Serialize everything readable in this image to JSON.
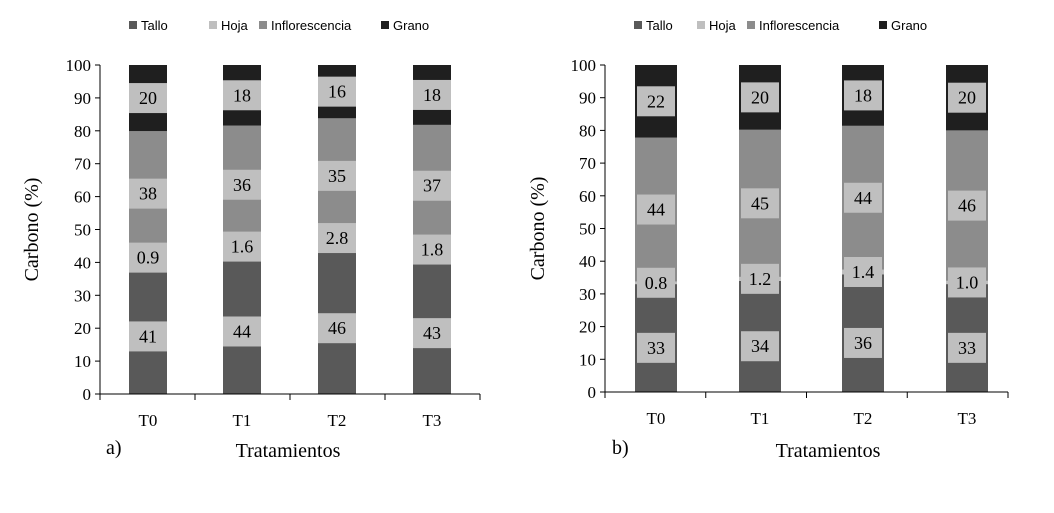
{
  "colors": {
    "Tallo": "#595959",
    "Hoja": "#bfbfbf",
    "Inflorescencia": "#8c8c8c",
    "Grano": "#1f1f1f",
    "label_bg": "#bfbfbf"
  },
  "chart_data": [
    {
      "type": "bar",
      "stacked": true,
      "panel_label": "a)",
      "xlabel": "Tratamientos",
      "ylabel": "Carbono (%)",
      "ylim": [
        0,
        100
      ],
      "yticks": [
        0,
        10,
        20,
        30,
        40,
        50,
        60,
        70,
        80,
        90,
        100
      ],
      "categories": [
        "T0",
        "T1",
        "T2",
        "T3"
      ],
      "legend_position": "top",
      "series": [
        {
          "name": "Tallo",
          "values": [
            41,
            44,
            46,
            43
          ],
          "labels": [
            "41",
            "44",
            "46",
            "43"
          ]
        },
        {
          "name": "Hoja",
          "values": [
            0.9,
            1.6,
            2.8,
            1.8
          ],
          "labels": [
            "0.9",
            "1.6",
            "2.8",
            "1.8"
          ]
        },
        {
          "name": "Inflorescencia",
          "values": [
            38,
            36,
            35,
            37
          ],
          "labels": [
            "38",
            "36",
            "35",
            "37"
          ]
        },
        {
          "name": "Grano",
          "values": [
            20,
            18,
            16,
            18
          ],
          "labels": [
            "20",
            "18",
            "16",
            "18"
          ]
        }
      ]
    },
    {
      "type": "bar",
      "stacked": true,
      "panel_label": "b)",
      "xlabel": "Tratamientos",
      "ylabel": "Carbono (%)",
      "ylim": [
        0,
        100
      ],
      "yticks": [
        0,
        10,
        20,
        30,
        40,
        50,
        60,
        70,
        80,
        90,
        100
      ],
      "categories": [
        "T0",
        "T1",
        "T2",
        "T3"
      ],
      "legend_position": "top",
      "series": [
        {
          "name": "Tallo",
          "values": [
            33,
            34,
            36,
            33
          ],
          "labels": [
            "33",
            "34",
            "36",
            "33"
          ]
        },
        {
          "name": "Hoja",
          "values": [
            0.8,
            1.2,
            1.4,
            1.0
          ],
          "labels": [
            "0.8",
            "1.2",
            "1.4",
            "1.0"
          ]
        },
        {
          "name": "Inflorescencia",
          "values": [
            44,
            45,
            44,
            46
          ],
          "labels": [
            "44",
            "45",
            "44",
            "46"
          ]
        },
        {
          "name": "Grano",
          "values": [
            22,
            20,
            18,
            20
          ],
          "labels": [
            "22",
            "20",
            "18",
            "20"
          ]
        }
      ]
    }
  ]
}
